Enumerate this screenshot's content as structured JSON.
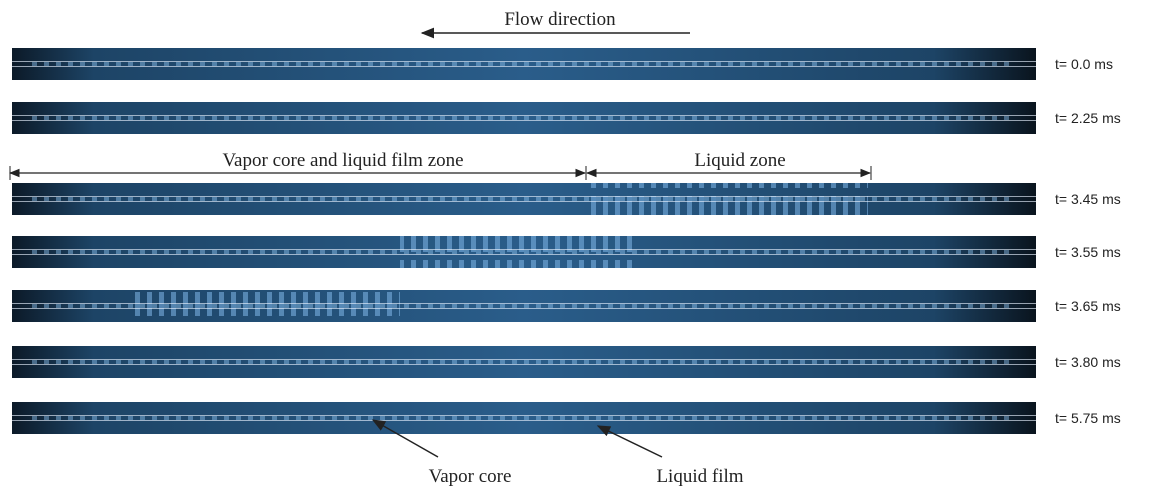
{
  "flow_label": "Flow direction",
  "zones": [
    "Vapor core and liquid film zone",
    "Liquid zone"
  ],
  "frames": [
    {
      "time": "t= 0.0 ms"
    },
    {
      "time": "t= 2.25 ms"
    },
    {
      "time": "t= 3.45 ms"
    },
    {
      "time": "t= 3.55 ms"
    },
    {
      "time": "t= 3.65 ms"
    },
    {
      "time": "t= 3.80 ms"
    },
    {
      "time": "t= 5.75 ms"
    }
  ],
  "annotations": [
    "Vapor core",
    "Liquid film"
  ]
}
